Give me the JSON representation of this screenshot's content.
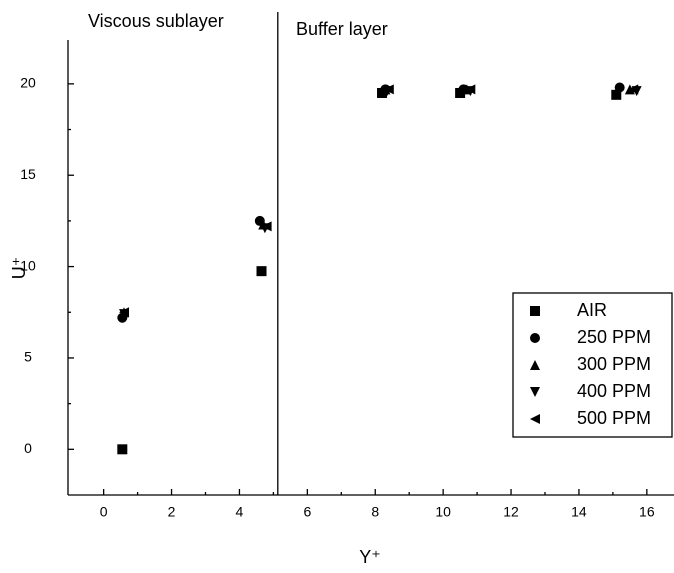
{
  "chart_data": {
    "type": "scatter",
    "annotations": [
      "Viscous sublayer",
      "Buffer layer"
    ],
    "x_label": "Y⁺",
    "y_label": "U⁺",
    "xlim": [
      -1.05,
      16.8
    ],
    "ylim": [
      -2.5,
      22.4
    ],
    "xticks": [
      0,
      2,
      4,
      6,
      8,
      10,
      12,
      14,
      16
    ],
    "yticks": [
      0,
      5,
      10,
      15,
      20
    ],
    "vlines": [
      5.13
    ],
    "legend": "right",
    "series": [
      {
        "name": "AIR",
        "color": "#000000",
        "marker": "square",
        "x": [
          0.55,
          4.65,
          8.2,
          10.5,
          15.1
        ],
        "values": [
          0,
          9.75,
          19.5,
          19.5,
          19.4
        ]
      },
      {
        "name": "250 PPM",
        "color": "#000000",
        "marker": "circle",
        "x": [
          0.55,
          4.6,
          8.3,
          10.6,
          15.2
        ],
        "values": [
          7.2,
          12.5,
          19.7,
          19.7,
          19.8
        ]
      },
      {
        "name": "300 PPM",
        "color": "#000000",
        "marker": "triangle-up",
        "x": [
          0.6,
          4.7,
          8.3,
          10.7,
          15.5
        ],
        "values": [
          7.5,
          12.3,
          19.7,
          19.7,
          19.7
        ]
      },
      {
        "name": "400 PPM",
        "color": "#000000",
        "marker": "triangle-down",
        "x": [
          0.6,
          4.75,
          8.35,
          10.8,
          15.7
        ],
        "values": [
          7.4,
          12.1,
          19.6,
          19.6,
          19.6
        ]
      },
      {
        "name": "500 PPM",
        "color": "#000000",
        "marker": "triangle-left",
        "x": [
          0.6,
          4.8,
          8.4,
          10.8,
          15.6
        ],
        "values": [
          7.5,
          12.2,
          19.7,
          19.7,
          19.7
        ]
      }
    ]
  }
}
